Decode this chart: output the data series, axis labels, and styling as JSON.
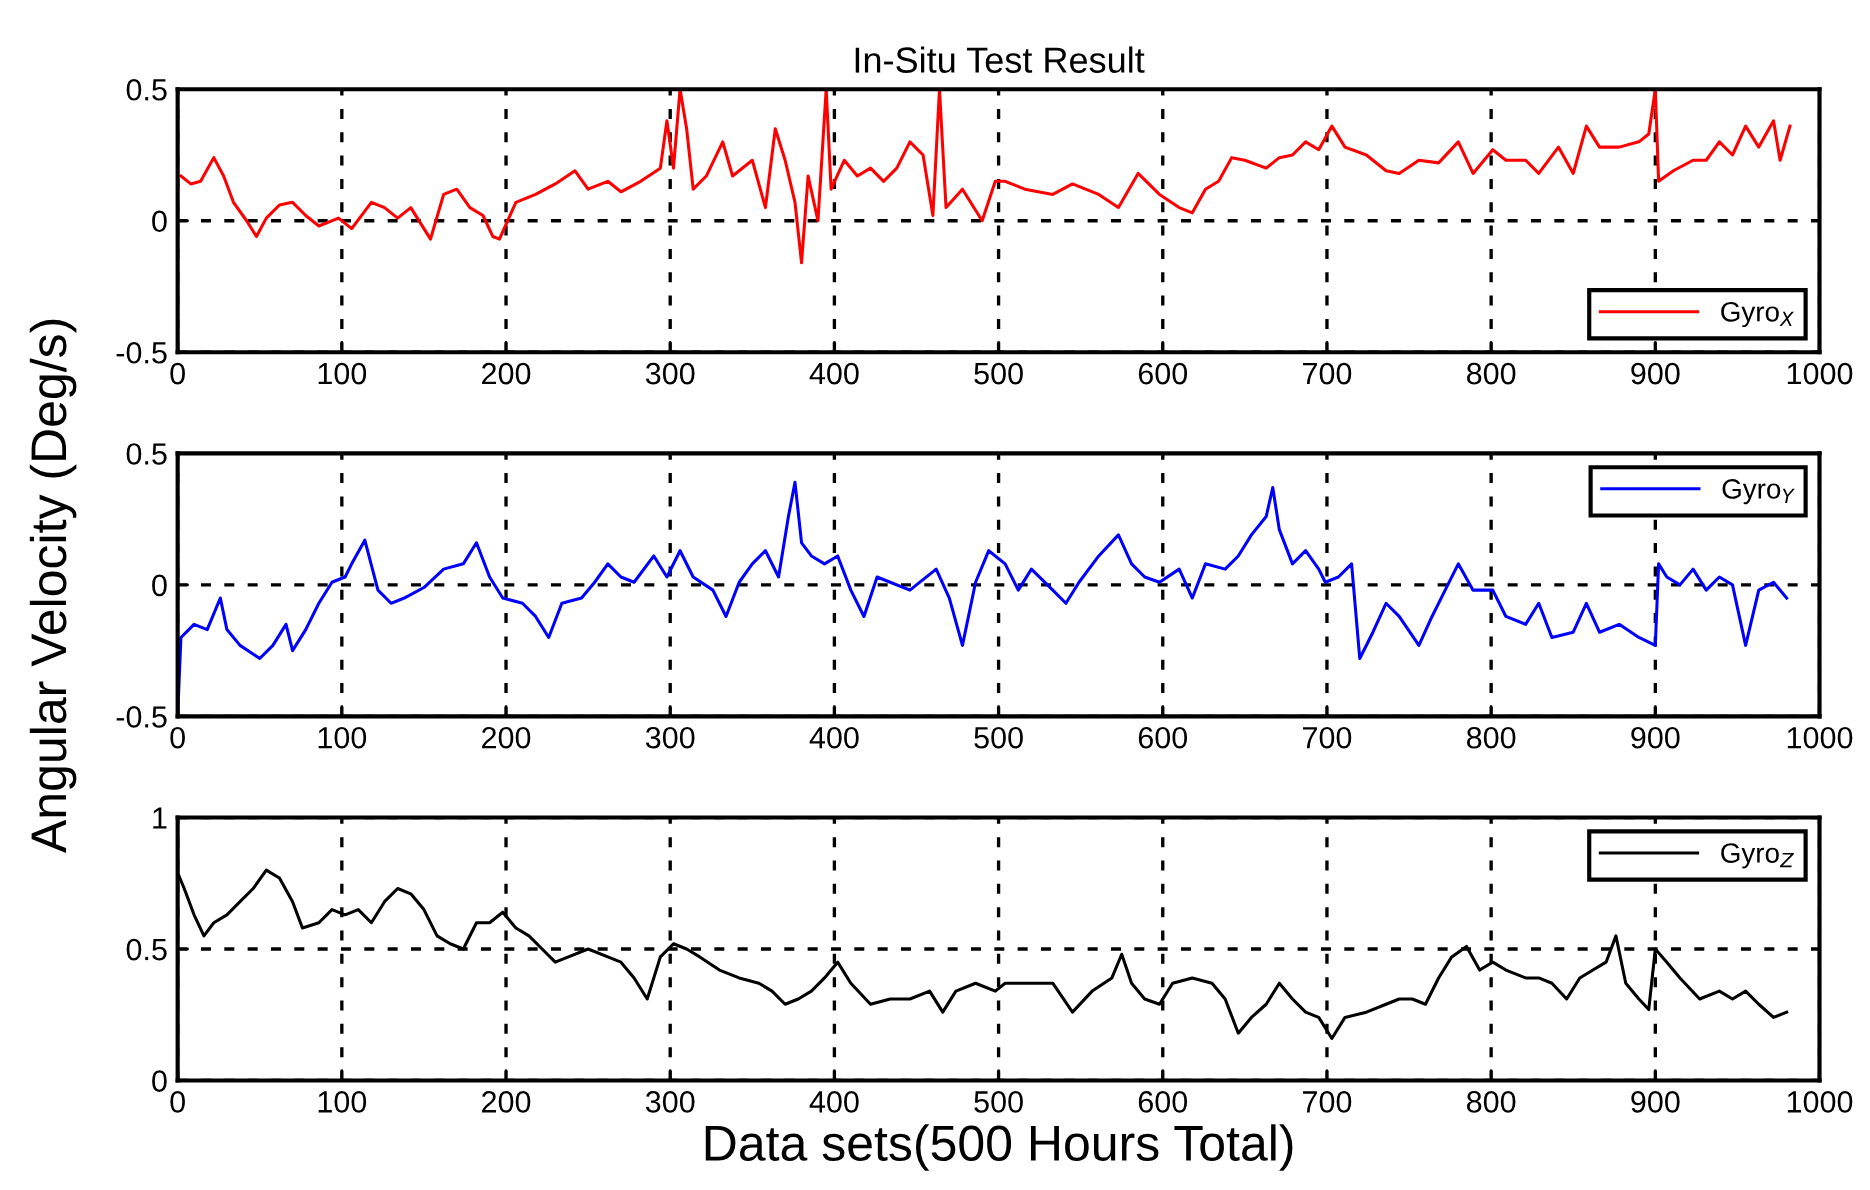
{
  "chart_data": [
    {
      "type": "line",
      "title": "In-Situ Test Result",
      "xlim": [
        0,
        1000
      ],
      "xticks": [
        0,
        100,
        200,
        300,
        400,
        500,
        600,
        700,
        800,
        900,
        1000
      ],
      "ylim": [
        -0.5,
        0.5
      ],
      "yticks": [
        -0.5,
        0,
        0.5
      ],
      "grid": true,
      "legend": "bottom right",
      "line_style": "solid",
      "series": [
        {
          "name": "Gyro$_{X}$",
          "color": "#ff0000",
          "x": [
            2,
            8,
            14,
            22,
            28,
            34,
            42,
            48,
            54,
            62,
            70,
            78,
            86,
            98,
            106,
            118,
            126,
            134,
            142,
            150,
            154,
            162,
            170,
            178,
            186,
            192,
            196,
            206,
            218,
            230,
            242,
            250,
            262,
            270,
            282,
            294,
            298,
            302,
            306,
            310,
            314,
            322,
            332,
            338,
            350,
            358,
            364,
            370,
            376,
            380,
            384,
            390,
            395,
            398,
            406,
            414,
            422,
            430,
            438,
            446,
            454,
            460,
            464,
            468,
            478,
            490,
            498,
            504,
            516,
            533,
            545,
            561,
            573,
            585,
            598,
            610,
            618,
            626,
            634,
            642,
            650,
            663,
            671,
            679,
            687,
            695,
            703,
            711,
            724,
            736,
            744,
            756,
            768,
            780,
            789,
            801,
            809,
            821,
            829,
            841,
            850,
            858,
            866,
            878,
            890,
            896,
            900,
            902,
            911,
            923,
            931,
            939,
            947,
            955,
            963,
            972,
            976,
            982
          ],
          "values": [
            0.17,
            0.14,
            0.15,
            0.24,
            0.17,
            0.07,
            0,
            -0.06,
            0.01,
            0.06,
            0.07,
            0.02,
            -0.02,
            0.01,
            -0.03,
            0.07,
            0.05,
            0.01,
            0.05,
            -0.03,
            -0.07,
            0.1,
            0.12,
            0.05,
            0.02,
            -0.06,
            -0.07,
            0.07,
            0.1,
            0.14,
            0.19,
            0.12,
            0.15,
            0.11,
            0.15,
            0.2,
            0.38,
            0.2,
            0.5,
            0.35,
            0.12,
            0.17,
            0.3,
            0.17,
            0.23,
            0.05,
            0.35,
            0.23,
            0.07,
            -0.16,
            0.17,
            0,
            0.5,
            0.12,
            0.23,
            0.17,
            0.2,
            0.15,
            0.2,
            0.3,
            0.25,
            0.02,
            0.5,
            0.05,
            0.12,
            0,
            0.15,
            0.15,
            0.12,
            0.1,
            0.14,
            0.1,
            0.05,
            0.18,
            0.1,
            0.05,
            0.03,
            0.12,
            0.15,
            0.24,
            0.23,
            0.2,
            0.24,
            0.25,
            0.3,
            0.27,
            0.36,
            0.28,
            0.25,
            0.19,
            0.18,
            0.23,
            0.22,
            0.3,
            0.18,
            0.27,
            0.23,
            0.23,
            0.18,
            0.28,
            0.18,
            0.36,
            0.28,
            0.28,
            0.3,
            0.33,
            0.5,
            0.15,
            0.19,
            0.23,
            0.23,
            0.3,
            0.25,
            0.36,
            0.28,
            0.38,
            0.23,
            0.36
          ]
        }
      ]
    },
    {
      "type": "line",
      "ylabel": "Angular Velocity (Deg/s)",
      "xlim": [
        0,
        1000
      ],
      "xticks": [
        0,
        100,
        200,
        300,
        400,
        500,
        600,
        700,
        800,
        900,
        1000
      ],
      "ylim": [
        -0.5,
        0.5
      ],
      "yticks": [
        -0.5,
        0,
        0.5
      ],
      "grid": true,
      "legend": "top right",
      "line_style": "solid",
      "series": [
        {
          "name": "Gyro$_{Y}$",
          "color": "#0000ff",
          "x": [
            0,
            2,
            10,
            18,
            26,
            30,
            38,
            50,
            58,
            66,
            70,
            78,
            86,
            94,
            102,
            106,
            114,
            122,
            130,
            138,
            150,
            162,
            174,
            182,
            190,
            198,
            210,
            218,
            226,
            234,
            246,
            254,
            262,
            270,
            278,
            290,
            298,
            306,
            314,
            326,
            334,
            342,
            350,
            358,
            366,
            372,
            376,
            380,
            386,
            394,
            402,
            410,
            418,
            426,
            434,
            446,
            462,
            470,
            478,
            486,
            494,
            504,
            512,
            520,
            533,
            541,
            549,
            561,
            573,
            581,
            589,
            598,
            610,
            618,
            626,
            638,
            646,
            654,
            663,
            667,
            671,
            679,
            687,
            695,
            699,
            707,
            715,
            720,
            728,
            736,
            744,
            756,
            764,
            772,
            780,
            789,
            801,
            809,
            821,
            829,
            837,
            850,
            858,
            866,
            878,
            890,
            900,
            902,
            907,
            915,
            923,
            931,
            939,
            947,
            955,
            963,
            972,
            980
          ],
          "values": [
            -0.5,
            -0.2,
            -0.15,
            -0.17,
            -0.05,
            -0.17,
            -0.23,
            -0.28,
            -0.23,
            -0.15,
            -0.25,
            -0.17,
            -0.07,
            0.01,
            0.03,
            0.08,
            0.17,
            -0.02,
            -0.07,
            -0.05,
            -0.01,
            0.06,
            0.08,
            0.16,
            0.03,
            -0.05,
            -0.07,
            -0.12,
            -0.2,
            -0.07,
            -0.05,
            0.01,
            0.08,
            0.03,
            0.01,
            0.11,
            0.03,
            0.13,
            0.03,
            -0.02,
            -0.12,
            0.01,
            0.08,
            0.13,
            0.03,
            0.26,
            0.39,
            0.16,
            0.11,
            0.08,
            0.11,
            -0.02,
            -0.12,
            0.03,
            0.01,
            -0.02,
            0.06,
            -0.05,
            -0.23,
            0.01,
            0.13,
            0.08,
            -0.02,
            0.06,
            -0.02,
            -0.07,
            0.01,
            0.11,
            0.19,
            0.08,
            0.03,
            0.01,
            0.06,
            -0.05,
            0.08,
            0.06,
            0.11,
            0.19,
            0.26,
            0.37,
            0.21,
            0.08,
            0.13,
            0.06,
            0.01,
            0.03,
            0.08,
            -0.28,
            -0.18,
            -0.07,
            -0.12,
            -0.23,
            -0.12,
            -0.02,
            0.08,
            -0.02,
            -0.02,
            -0.12,
            -0.15,
            -0.07,
            -0.2,
            -0.18,
            -0.07,
            -0.18,
            -0.15,
            -0.2,
            -0.23,
            0.08,
            0.03,
            0,
            0.06,
            -0.02,
            0.03,
            0,
            -0.23,
            -0.02,
            0.01,
            -0.05
          ]
        }
      ]
    },
    {
      "type": "line",
      "xlabel": "Data sets(500 Hours Total)",
      "xlim": [
        0,
        1000
      ],
      "xticks": [
        0,
        100,
        200,
        300,
        400,
        500,
        600,
        700,
        800,
        900,
        1000
      ],
      "ylim": [
        0,
        1
      ],
      "yticks": [
        0,
        0.5,
        1
      ],
      "grid": true,
      "legend": "top right",
      "line_style": "solid",
      "series": [
        {
          "name": "Gyro$_{Z}$",
          "color": "#000000",
          "x": [
            0,
            4,
            10,
            16,
            22,
            30,
            38,
            46,
            54,
            62,
            70,
            76,
            86,
            94,
            102,
            110,
            118,
            126,
            134,
            142,
            150,
            158,
            166,
            174,
            182,
            190,
            198,
            206,
            214,
            222,
            230,
            238,
            250,
            262,
            270,
            278,
            286,
            294,
            302,
            310,
            318,
            330,
            342,
            354,
            362,
            370,
            378,
            386,
            394,
            402,
            410,
            422,
            434,
            446,
            458,
            466,
            474,
            486,
            498,
            504,
            516,
            533,
            545,
            557,
            569,
            575,
            581,
            589,
            598,
            606,
            618,
            630,
            638,
            646,
            654,
            663,
            671,
            679,
            687,
            695,
            703,
            711,
            724,
            736,
            744,
            752,
            760,
            768,
            776,
            785,
            793,
            801,
            809,
            821,
            829,
            837,
            846,
            854,
            862,
            870,
            876,
            882,
            890,
            896,
            900,
            907,
            915,
            927,
            939,
            947,
            955,
            963,
            972,
            980
          ],
          "values": [
            0.79,
            0.73,
            0.63,
            0.55,
            0.6,
            0.63,
            0.68,
            0.73,
            0.8,
            0.77,
            0.68,
            0.58,
            0.6,
            0.65,
            0.63,
            0.65,
            0.6,
            0.68,
            0.73,
            0.71,
            0.65,
            0.55,
            0.52,
            0.5,
            0.6,
            0.6,
            0.64,
            0.58,
            0.55,
            0.5,
            0.45,
            0.47,
            0.5,
            0.47,
            0.45,
            0.39,
            0.31,
            0.47,
            0.52,
            0.5,
            0.47,
            0.42,
            0.39,
            0.37,
            0.34,
            0.29,
            0.31,
            0.34,
            0.39,
            0.45,
            0.37,
            0.29,
            0.31,
            0.31,
            0.34,
            0.26,
            0.34,
            0.37,
            0.34,
            0.37,
            0.37,
            0.37,
            0.26,
            0.34,
            0.39,
            0.48,
            0.37,
            0.31,
            0.29,
            0.37,
            0.39,
            0.37,
            0.31,
            0.18,
            0.24,
            0.29,
            0.37,
            0.31,
            0.26,
            0.24,
            0.16,
            0.24,
            0.26,
            0.29,
            0.31,
            0.31,
            0.29,
            0.39,
            0.47,
            0.51,
            0.42,
            0.45,
            0.42,
            0.39,
            0.39,
            0.37,
            0.31,
            0.39,
            0.42,
            0.45,
            0.55,
            0.37,
            0.31,
            0.27,
            0.5,
            0.45,
            0.39,
            0.31,
            0.34,
            0.31,
            0.34,
            0.29,
            0.24,
            0.26
          ]
        }
      ]
    }
  ]
}
